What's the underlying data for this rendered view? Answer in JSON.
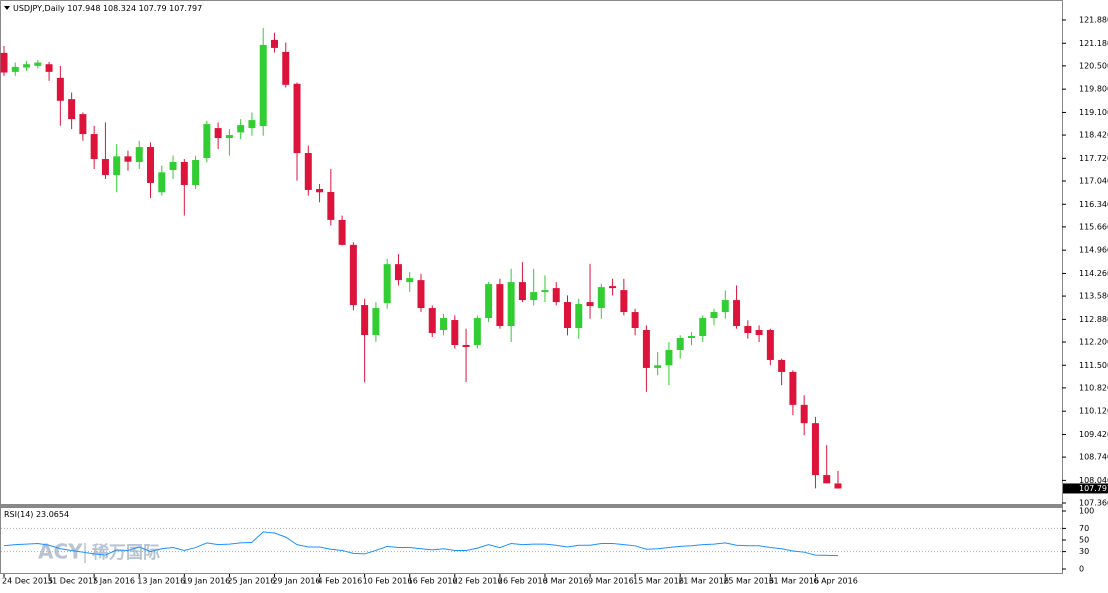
{
  "chart_data": [
    {
      "type": "candlestick",
      "title": "USDJPY,Daily",
      "categories": [
        "24 Dec 2015",
        null,
        null,
        null,
        "31 Dec 2015",
        null,
        null,
        null,
        "7 Jan 2016",
        null,
        null,
        null,
        "13 Jan 2016",
        null,
        null,
        null,
        "19 Jan 2016",
        null,
        null,
        null,
        "25 Jan 2016",
        null,
        null,
        null,
        "29 Jan 2016",
        null,
        null,
        null,
        "4 Feb 2016",
        null,
        null,
        null,
        "10 Feb 2016",
        null,
        null,
        null,
        "16 Feb 2016",
        null,
        null,
        null,
        "22 Feb 2016",
        null,
        null,
        null,
        "26 Feb 2016",
        null,
        null,
        null,
        "3 Mar 2016",
        null,
        null,
        null,
        "9 Mar 2016",
        null,
        null,
        null,
        "15 Mar 2016",
        null,
        null,
        null,
        "21 Mar 2016",
        null,
        null,
        null,
        "25 Mar 2016",
        null,
        null,
        null,
        "31 Mar 2016",
        null,
        null,
        null,
        "6 Apr 2016",
        null,
        null
      ],
      "open": [
        120.89,
        120.32,
        120.45,
        120.5,
        120.55,
        120.14,
        119.5,
        119.05,
        118.45,
        117.7,
        117.22,
        117.78,
        117.61,
        118.06,
        116.7,
        117.37,
        117.61,
        116.92,
        117.73,
        118.63,
        118.33,
        118.5,
        118.63,
        118.69,
        121.28,
        120.92,
        119.96,
        117.88,
        116.8,
        116.71,
        115.87,
        115.12,
        113.31,
        112.41,
        113.37,
        114.54,
        114.0,
        114.06,
        113.22,
        112.56,
        112.86,
        112.11,
        112.11,
        112.92,
        113.94,
        112.68,
        114.0,
        113.46,
        113.7,
        113.82,
        113.4,
        112.62,
        113.4,
        113.22,
        113.88,
        113.76,
        113.1,
        112.56,
        111.42,
        111.5,
        111.96,
        112.32,
        112.38,
        112.92,
        113.1,
        113.46,
        112.68,
        112.56,
        112.56,
        111.66,
        111.3,
        110.31,
        109.76,
        108.2,
        107.948
      ],
      "high": [
        121.1,
        120.6,
        120.65,
        120.68,
        120.62,
        120.5,
        119.7,
        119.1,
        118.7,
        118.8,
        118.15,
        117.95,
        118.25,
        118.2,
        117.5,
        117.8,
        117.7,
        117.8,
        118.85,
        118.8,
        118.6,
        118.9,
        119.1,
        121.64,
        121.5,
        121.2,
        120.0,
        118.1,
        116.95,
        117.4,
        116.0,
        115.2,
        113.5,
        113.4,
        114.7,
        114.84,
        114.3,
        114.25,
        113.3,
        113.05,
        113.0,
        112.6,
        113.0,
        114.0,
        114.1,
        114.4,
        114.6,
        114.4,
        114.2,
        114.0,
        113.6,
        113.5,
        114.55,
        113.95,
        114.1,
        114.1,
        113.2,
        112.7,
        111.9,
        112.2,
        112.4,
        112.5,
        113.0,
        113.2,
        113.75,
        113.9,
        112.85,
        112.7,
        112.6,
        111.7,
        111.35,
        110.6,
        109.95,
        109.1,
        108.324
      ],
      "low": [
        120.2,
        120.2,
        120.35,
        120.42,
        120.05,
        118.7,
        118.6,
        118.25,
        117.4,
        117.1,
        116.7,
        117.35,
        117.4,
        116.53,
        116.6,
        117.1,
        116.0,
        116.8,
        117.6,
        118.0,
        117.8,
        118.3,
        118.4,
        118.4,
        120.9,
        119.85,
        117.05,
        116.6,
        116.4,
        115.7,
        115.1,
        113.15,
        110.99,
        112.2,
        113.2,
        113.9,
        113.7,
        113.1,
        112.35,
        112.4,
        112.0,
        111.0,
        112.0,
        112.8,
        112.6,
        112.2,
        113.4,
        113.3,
        113.4,
        113.3,
        112.4,
        112.3,
        112.9,
        112.9,
        113.6,
        113.0,
        112.4,
        110.7,
        111.2,
        110.9,
        111.7,
        112.1,
        112.2,
        112.7,
        112.9,
        112.6,
        112.3,
        112.2,
        111.5,
        110.9,
        110.0,
        109.4,
        107.8,
        108.0,
        107.79
      ],
      "close": [
        120.3,
        120.47,
        120.55,
        120.6,
        120.32,
        119.45,
        118.9,
        118.45,
        117.7,
        117.22,
        117.78,
        117.62,
        118.06,
        116.98,
        117.3,
        117.61,
        116.92,
        117.67,
        118.75,
        118.33,
        118.42,
        118.72,
        118.87,
        121.13,
        121.04,
        119.93,
        117.88,
        116.77,
        116.7,
        115.87,
        115.12,
        113.31,
        112.41,
        113.22,
        114.54,
        114.06,
        114.12,
        113.22,
        112.47,
        112.92,
        112.11,
        112.05,
        112.92,
        113.94,
        112.68,
        114.0,
        113.46,
        113.7,
        113.76,
        113.4,
        112.62,
        113.34,
        113.28,
        113.85,
        113.82,
        113.1,
        112.62,
        111.42,
        111.5,
        111.96,
        112.32,
        112.38,
        112.92,
        113.1,
        113.46,
        112.68,
        112.47,
        112.41,
        111.66,
        111.3,
        110.31,
        109.76,
        108.2,
        107.95,
        107.797
      ],
      "up_color": "#32cd32",
      "down_color": "#dc143c",
      "ylim": [
        107.3,
        122.39
      ],
      "yticks": [
        {
          "value": 121.88,
          "label": "121.880"
        },
        {
          "value": 121.18,
          "label": "121.180"
        },
        {
          "value": 120.5,
          "label": "120.500"
        },
        {
          "value": 119.8,
          "label": "119.800"
        },
        {
          "value": 119.1,
          "label": "119.100"
        },
        {
          "value": 118.42,
          "label": "118.420"
        },
        {
          "value": 117.72,
          "label": "117.720"
        },
        {
          "value": 117.04,
          "label": "117.040"
        },
        {
          "value": 116.34,
          "label": "116.340"
        },
        {
          "value": 115.66,
          "label": "115.660"
        },
        {
          "value": 114.96,
          "label": "114.960"
        },
        {
          "value": 114.26,
          "label": "114.260"
        },
        {
          "value": 113.58,
          "label": "113.580"
        },
        {
          "value": 112.88,
          "label": "112.880"
        },
        {
          "value": 112.2,
          "label": "112.200"
        },
        {
          "value": 111.5,
          "label": "111.500"
        },
        {
          "value": 110.82,
          "label": "110.820"
        },
        {
          "value": 110.12,
          "label": "110.120"
        },
        {
          "value": 109.42,
          "label": "109.420"
        },
        {
          "value": 108.74,
          "label": "108.740"
        },
        {
          "value": 108.04,
          "label": "108.040"
        },
        {
          "value": 107.36,
          "label": "107.360"
        }
      ]
    },
    {
      "type": "line",
      "title": "RSI(14)",
      "color": "#1e90ff",
      "values": [
        40,
        42,
        43,
        44,
        41,
        35,
        32,
        29,
        26,
        24,
        33,
        32,
        38,
        30,
        35,
        37,
        32,
        37,
        45,
        42,
        43,
        45,
        46,
        64,
        62,
        55,
        42,
        38,
        38,
        34,
        32,
        27,
        26,
        32,
        39,
        37,
        37,
        35,
        33,
        35,
        32,
        32,
        36,
        42,
        37,
        44,
        42,
        43,
        43,
        41,
        38,
        41,
        41,
        44,
        44,
        42,
        40,
        34,
        35,
        37,
        39,
        40,
        42,
        43,
        45,
        41,
        40,
        40,
        37,
        35,
        31,
        29,
        24,
        23.5,
        23.0654
      ],
      "ylim": [
        -8.6,
        106.9
      ],
      "yticks": [
        100,
        70,
        50,
        30,
        0
      ],
      "levels": [
        30,
        70
      ]
    }
  ],
  "watermark": [
    "ACY",
    "稀万国际"
  ]
}
